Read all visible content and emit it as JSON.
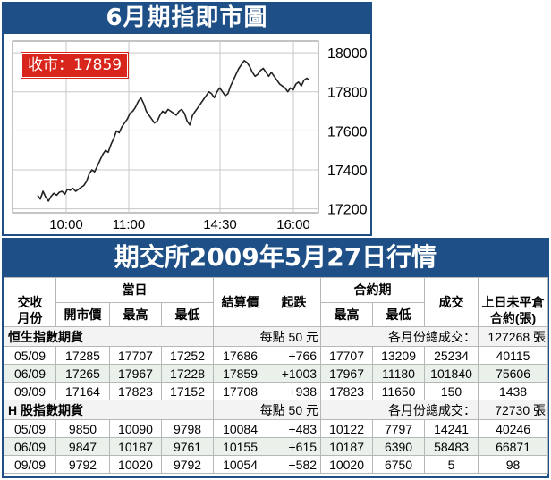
{
  "chart_title": "6月期指即市圖",
  "close_badge": "收市：17859",
  "table_title": "期交所2009年5月27日行情",
  "chart_data": {
    "type": "line",
    "title": "6月期指即市圖",
    "xlabel": "",
    "ylabel": "",
    "x_ticks": [
      "10:00",
      "11:00",
      "14:30",
      "16:00"
    ],
    "y_ticks": [
      17200,
      17400,
      17600,
      17800,
      18000
    ],
    "ylim": [
      17180,
      18060
    ],
    "grid": true,
    "close_label": "收市：17859",
    "series": [
      {
        "x": [
          0,
          1,
          2,
          3,
          4,
          5,
          6,
          7,
          8,
          9,
          10,
          11,
          12,
          13,
          14,
          15,
          16,
          17,
          18,
          19,
          20,
          21,
          22,
          23,
          24,
          25,
          26,
          27,
          28,
          29,
          30,
          31,
          32,
          33,
          34,
          35,
          36,
          37,
          38,
          39,
          40,
          41,
          42,
          43,
          44,
          45,
          46,
          47,
          48,
          49,
          50,
          51,
          52,
          53,
          54,
          55,
          56,
          57,
          58,
          59,
          60,
          61,
          62,
          63,
          64,
          65,
          66,
          67,
          68,
          69,
          70,
          71,
          72,
          73,
          74,
          75,
          76,
          77,
          78,
          79,
          80,
          81,
          82,
          83,
          84,
          85,
          86,
          87,
          88,
          89,
          90,
          91,
          92,
          93,
          94,
          95,
          96,
          97,
          98,
          99,
          100
        ],
        "values": [
          17270,
          17250,
          17290,
          17260,
          17240,
          17265,
          17280,
          17270,
          17285,
          17290,
          17275,
          17300,
          17295,
          17305,
          17290,
          17300,
          17310,
          17320,
          17340,
          17380,
          17400,
          17390,
          17420,
          17450,
          17480,
          17500,
          17490,
          17530,
          17560,
          17600,
          17590,
          17620,
          17640,
          17660,
          17690,
          17700,
          17720,
          17750,
          17770,
          17740,
          17700,
          17680,
          17660,
          17640,
          17650,
          17680,
          17700,
          17690,
          17710,
          17700,
          17690,
          17680,
          17700,
          17710,
          17690,
          17650,
          17630,
          17680,
          17700,
          17720,
          17740,
          17760,
          17780,
          17800,
          17790,
          17770,
          17800,
          17820,
          17800,
          17780,
          17790,
          17830,
          17860,
          17890,
          17920,
          17940,
          17960,
          17950,
          17930,
          17900,
          17880,
          17890,
          17910,
          17920,
          17900,
          17880,
          17900,
          17880,
          17860,
          17840,
          17830,
          17820,
          17800,
          17820,
          17810,
          17840,
          17850,
          17830,
          17860,
          17870,
          17859
        ]
      }
    ]
  },
  "table": {
    "header1": {
      "month": "交收\n月份",
      "today": "當日",
      "settle": "結算價",
      "change": "起跌",
      "contract": "合約期",
      "volume": "成交",
      "oi": "上日未平倉\n合約(張)"
    },
    "header2": {
      "open": "開市價",
      "high": "最高",
      "low": "最低",
      "c_high": "最高",
      "c_low": "最低"
    },
    "sections": [
      {
        "name": "恒生指數期貨",
        "per_point": "每點 50 元",
        "total_label": "各月份總成交：",
        "total": "127268 張",
        "rows": [
          [
            "05/09",
            "17285",
            "17707",
            "17252",
            "17686",
            "+766",
            "17707",
            "13209",
            "25234",
            "40115"
          ],
          [
            "06/09",
            "17265",
            "17967",
            "17228",
            "17859",
            "+1003",
            "17967",
            "11180",
            "101840",
            "75606"
          ],
          [
            "09/09",
            "17164",
            "17823",
            "17152",
            "17708",
            "+938",
            "17823",
            "11650",
            "150",
            "1438"
          ]
        ]
      },
      {
        "name": "H 股指數期貨",
        "per_point": "每點 50 元",
        "total_label": "各月份總成交：",
        "total": "72730 張",
        "rows": [
          [
            "05/09",
            "9850",
            "10090",
            "9798",
            "10084",
            "+483",
            "10122",
            "7797",
            "14241",
            "40246"
          ],
          [
            "06/09",
            "9847",
            "10187",
            "9761",
            "10155",
            "+615",
            "10187",
            "6390",
            "58483",
            "66871"
          ],
          [
            "09/09",
            "9792",
            "10020",
            "9792",
            "10054",
            "+582",
            "10020",
            "6750",
            "5",
            "98"
          ]
        ]
      }
    ]
  }
}
